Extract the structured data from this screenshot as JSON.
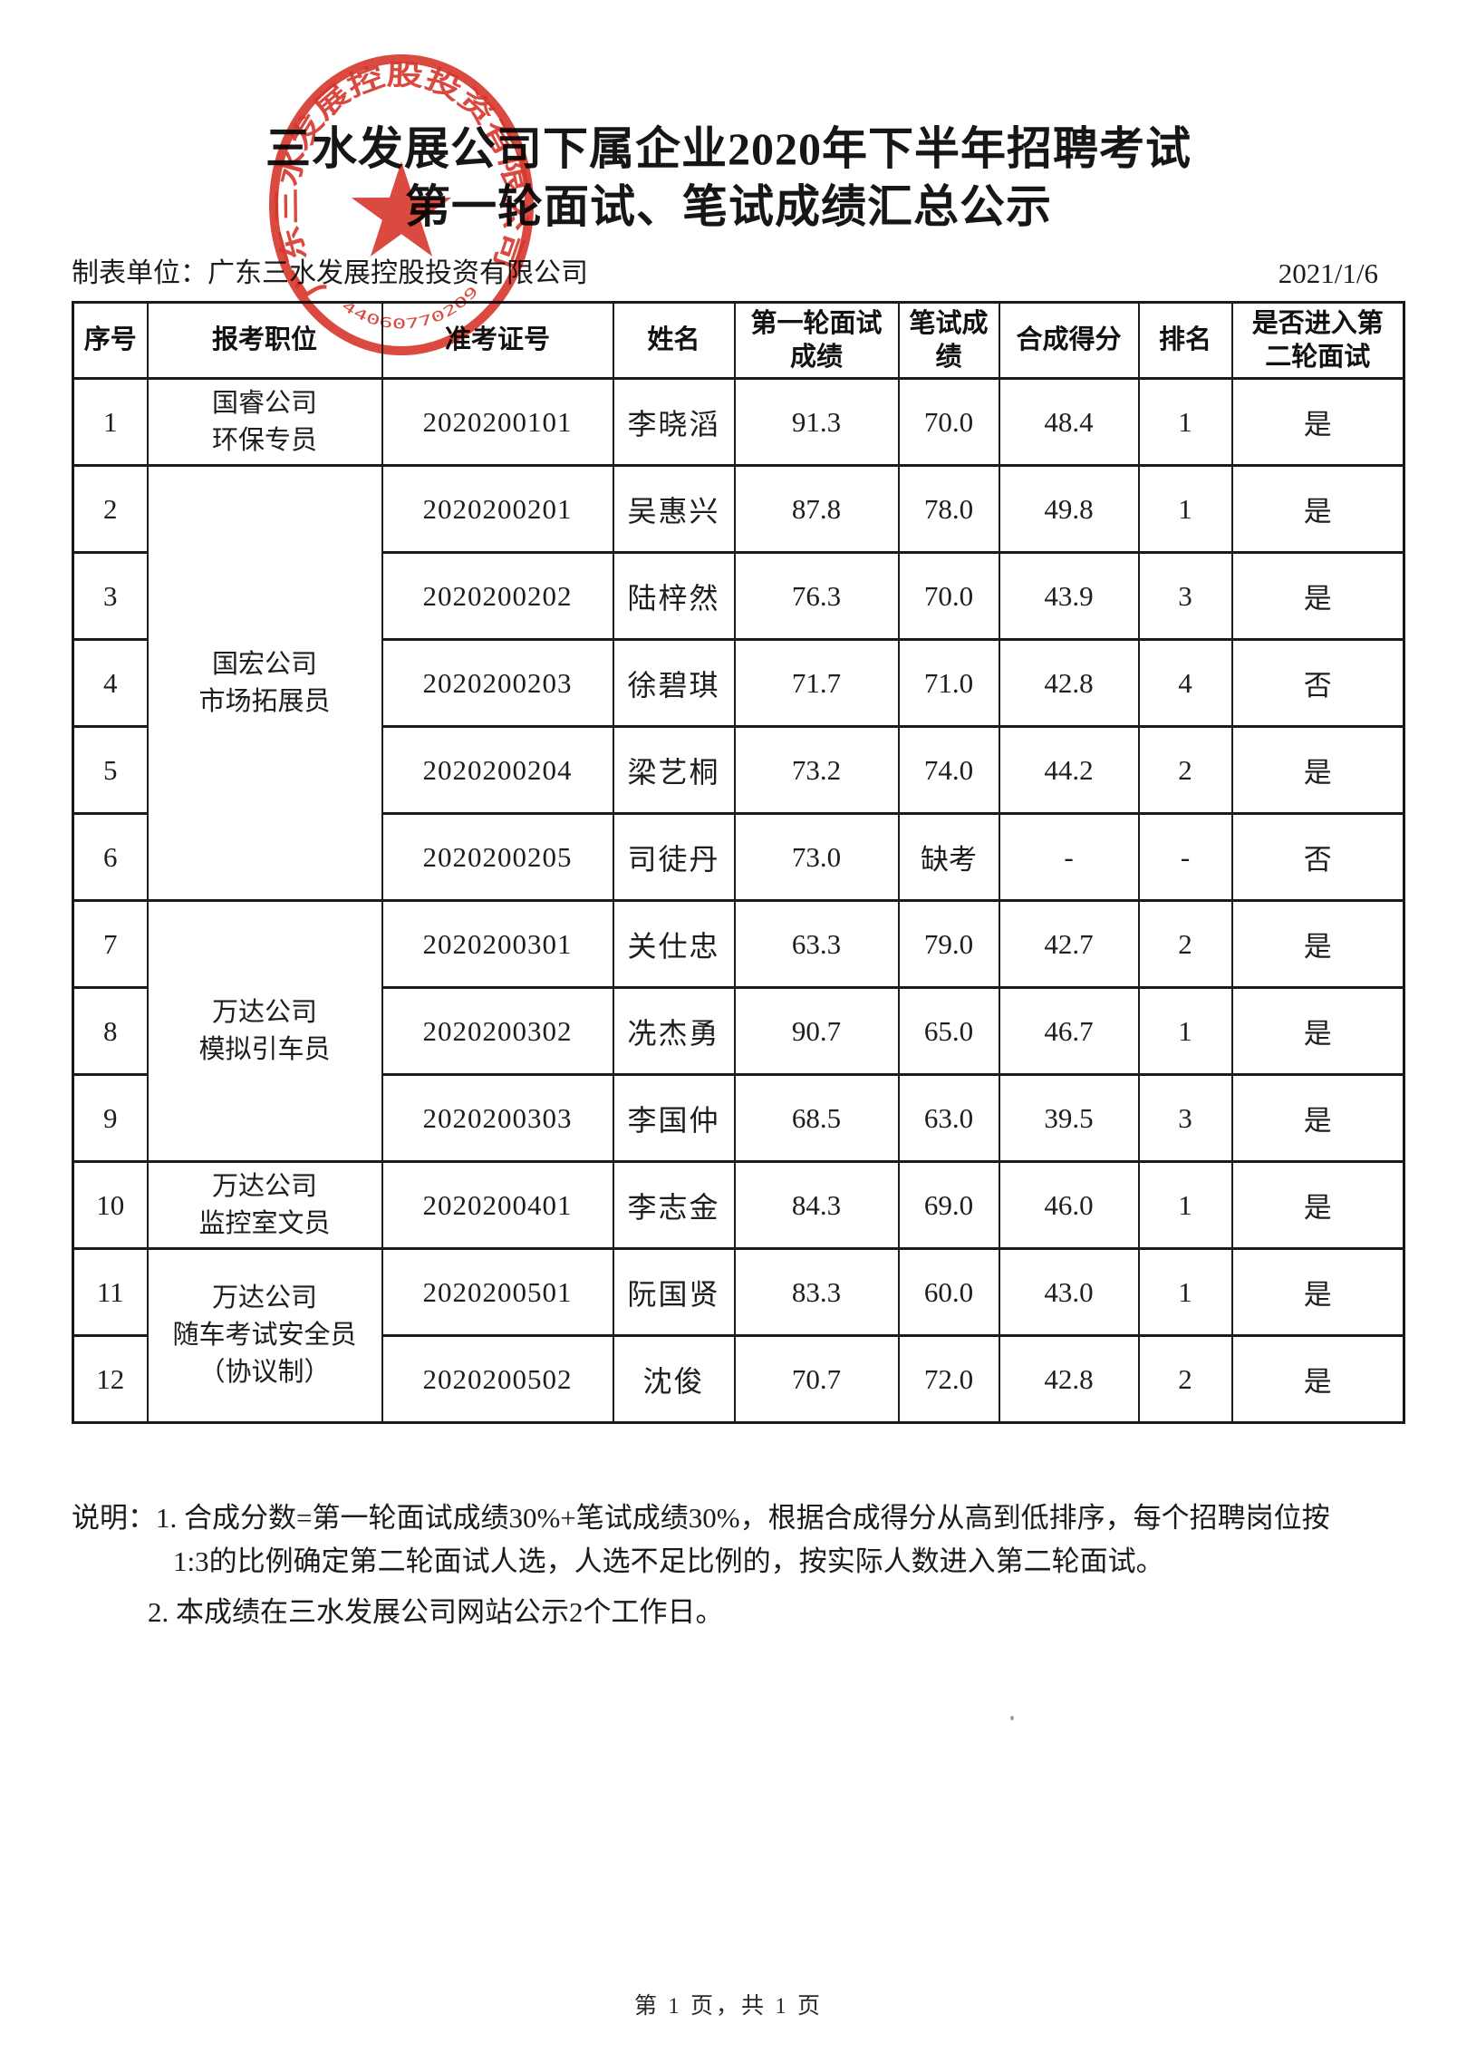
{
  "page": {
    "title_line1": "三水发展公司下属企业2020年下半年招聘考试",
    "title_line2": "第一轮面试、笔试成绩汇总公示",
    "prepared_by": "制表单位：广东三水发展控股投资有限公司",
    "date": "2021/1/6",
    "footer": "第 1 页，共 1 页"
  },
  "seal": {
    "company": "广东三水发展控股投资有限公司",
    "serial": "4406077020999",
    "color": "#d6362b"
  },
  "table": {
    "headers": [
      [
        "序号"
      ],
      [
        "报考职位"
      ],
      [
        "准考证号"
      ],
      [
        "姓名"
      ],
      [
        "第一轮面试",
        "成绩"
      ],
      [
        "笔试成",
        "绩"
      ],
      [
        "合成得分"
      ],
      [
        "排名"
      ],
      [
        "是否进入第",
        "二轮面试"
      ]
    ],
    "position_groups": [
      {
        "lines": [
          "国睿公司",
          "环保专员"
        ],
        "span": 1
      },
      {
        "lines": [
          "国宏公司",
          "市场拓展员"
        ],
        "span": 5
      },
      {
        "lines": [
          "万达公司",
          "模拟引车员"
        ],
        "span": 3
      },
      {
        "lines": [
          "万达公司",
          "监控室文员"
        ],
        "span": 1
      },
      {
        "lines": [
          "万达公司",
          "随车考试安全员",
          "（协议制）"
        ],
        "span": 2
      }
    ],
    "rows": [
      {
        "no": "1",
        "ticket": "2020200101",
        "name": "李晓滔",
        "interview": "91.3",
        "written": "70.0",
        "composite": "48.4",
        "rank": "1",
        "advance": "是"
      },
      {
        "no": "2",
        "ticket": "2020200201",
        "name": "吴惠兴",
        "interview": "87.8",
        "written": "78.0",
        "composite": "49.8",
        "rank": "1",
        "advance": "是"
      },
      {
        "no": "3",
        "ticket": "2020200202",
        "name": "陆梓然",
        "interview": "76.3",
        "written": "70.0",
        "composite": "43.9",
        "rank": "3",
        "advance": "是"
      },
      {
        "no": "4",
        "ticket": "2020200203",
        "name": "徐碧琪",
        "interview": "71.7",
        "written": "71.0",
        "composite": "42.8",
        "rank": "4",
        "advance": "否"
      },
      {
        "no": "5",
        "ticket": "2020200204",
        "name": "梁艺桐",
        "interview": "73.2",
        "written": "74.0",
        "composite": "44.2",
        "rank": "2",
        "advance": "是"
      },
      {
        "no": "6",
        "ticket": "2020200205",
        "name": "司徒丹",
        "interview": "73.0",
        "written": "缺考",
        "composite": "-",
        "rank": "-",
        "advance": "否"
      },
      {
        "no": "7",
        "ticket": "2020200301",
        "name": "关仕忠",
        "interview": "63.3",
        "written": "79.0",
        "composite": "42.7",
        "rank": "2",
        "advance": "是"
      },
      {
        "no": "8",
        "ticket": "2020200302",
        "name": "冼杰勇",
        "interview": "90.7",
        "written": "65.0",
        "composite": "46.7",
        "rank": "1",
        "advance": "是"
      },
      {
        "no": "9",
        "ticket": "2020200303",
        "name": "李国仲",
        "interview": "68.5",
        "written": "63.0",
        "composite": "39.5",
        "rank": "3",
        "advance": "是"
      },
      {
        "no": "10",
        "ticket": "2020200401",
        "name": "李志金",
        "interview": "84.3",
        "written": "69.0",
        "composite": "46.0",
        "rank": "1",
        "advance": "是"
      },
      {
        "no": "11",
        "ticket": "2020200501",
        "name": "阮国贤",
        "interview": "83.3",
        "written": "60.0",
        "composite": "43.0",
        "rank": "1",
        "advance": "是"
      },
      {
        "no": "12",
        "ticket": "2020200502",
        "name": "沈俊",
        "interview": "70.7",
        "written": "72.0",
        "composite": "42.8",
        "rank": "2",
        "advance": "是"
      }
    ]
  },
  "notes": {
    "label": "说明：",
    "line1": "1. 合成分数=第一轮面试成绩30%+笔试成绩30%，根据合成得分从高到低排序，每个招聘岗位按",
    "line2": "1:3的比例确定第二轮面试人选，人选不足比例的，按实际人数进入第二轮面试。",
    "line3": "2. 本成绩在三水发展公司网站公示2个工作日。"
  }
}
